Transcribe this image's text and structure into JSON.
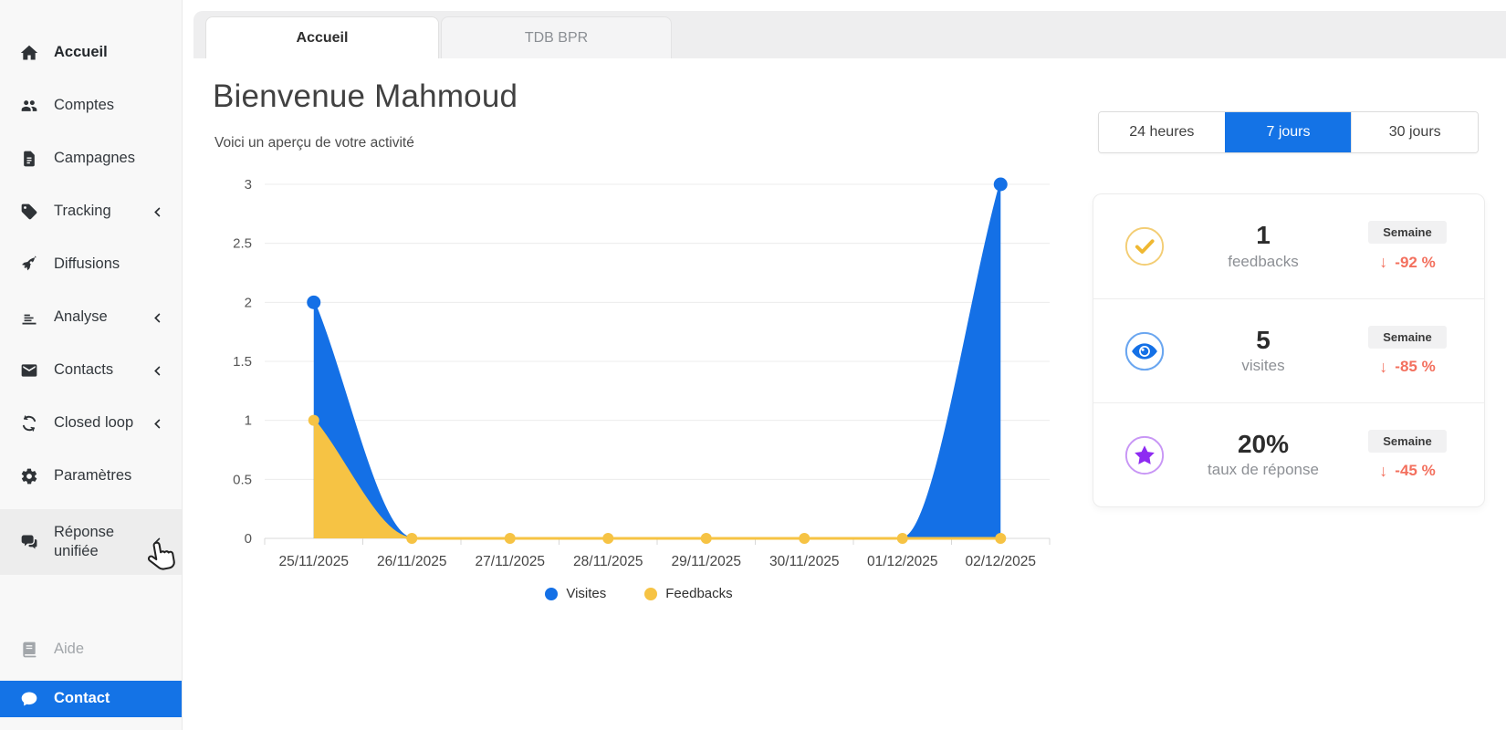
{
  "colors": {
    "accent": "#1473e6",
    "negative": "#f3705e",
    "visites_blue": "#1470e6",
    "feedbacks_yellow": "#f6c344",
    "response_purple": "#8e2bf2"
  },
  "sidebar": {
    "items": [
      {
        "label": "Accueil",
        "icon": "home-icon"
      },
      {
        "label": "Comptes",
        "icon": "users-icon"
      },
      {
        "label": "Campagnes",
        "icon": "document-icon"
      },
      {
        "label": "Tracking",
        "icon": "tag-icon",
        "chevron": true
      },
      {
        "label": "Diffusions",
        "icon": "rocket-icon"
      },
      {
        "label": "Analyse",
        "icon": "chart-icon",
        "chevron": true
      },
      {
        "label": "Contacts",
        "icon": "envelope-icon",
        "chevron": true
      },
      {
        "label": "Closed loop",
        "icon": "sync-icon",
        "chevron": true
      },
      {
        "label": "Paramètres",
        "icon": "gear-icon"
      },
      {
        "label": "Réponse unifiée",
        "icon": "chat-bubbles-icon",
        "chevron": true,
        "hovered": true
      }
    ],
    "footer": [
      {
        "label": "Aide",
        "icon": "book-icon",
        "muted": true
      },
      {
        "label": "Contact",
        "icon": "chat-icon",
        "active": true
      }
    ]
  },
  "tabs": [
    {
      "label": "Accueil",
      "active": true
    },
    {
      "label": "TDB BPR",
      "active": false
    }
  ],
  "header": {
    "title": "Bienvenue Mahmoud",
    "subtitle": "Voici un aperçu de votre activité"
  },
  "range_buttons": [
    {
      "label": "24 heures",
      "active": false
    },
    {
      "label": "7 jours",
      "active": true
    },
    {
      "label": "30 jours",
      "active": false
    }
  ],
  "stats": [
    {
      "icon": "check-icon",
      "icon_ring": "#f3cd74",
      "icon_glyph": "#efb832",
      "value": "1",
      "label": "feedbacks",
      "period": "Semaine",
      "arrow": "↓",
      "delta": "-92 %",
      "trend": "down"
    },
    {
      "icon": "eye-icon",
      "icon_ring": "#6aa6f0",
      "icon_glyph": "#1470e6",
      "value": "5",
      "label": "visites",
      "period": "Semaine",
      "arrow": "↓",
      "delta": "-85 %",
      "trend": "down"
    },
    {
      "icon": "star-icon",
      "icon_ring": "#c896f5",
      "icon_glyph": "#8e2bf2",
      "value": "20%",
      "label": "taux de réponse",
      "period": "Semaine",
      "arrow": "↓",
      "delta": "-45 %",
      "trend": "down"
    }
  ],
  "chart_data": {
    "type": "area",
    "x": [
      "25/11/2025",
      "26/11/2025",
      "27/11/2025",
      "28/11/2025",
      "29/11/2025",
      "30/11/2025",
      "01/12/2025",
      "02/12/2025"
    ],
    "series": [
      {
        "name": "Visites",
        "color": "#1470e6",
        "values": [
          2,
          0,
          0,
          0,
          0,
          0,
          0,
          3
        ]
      },
      {
        "name": "Feedbacks",
        "color": "#f6c344",
        "values": [
          1,
          0,
          0,
          0,
          0,
          0,
          0,
          0
        ]
      }
    ],
    "ylim": [
      0,
      3
    ],
    "yticks": [
      0,
      0.5,
      1,
      1.5,
      2,
      2.5,
      3
    ],
    "grid": true,
    "legend_position": "bottom",
    "interpolation": "monotone"
  }
}
